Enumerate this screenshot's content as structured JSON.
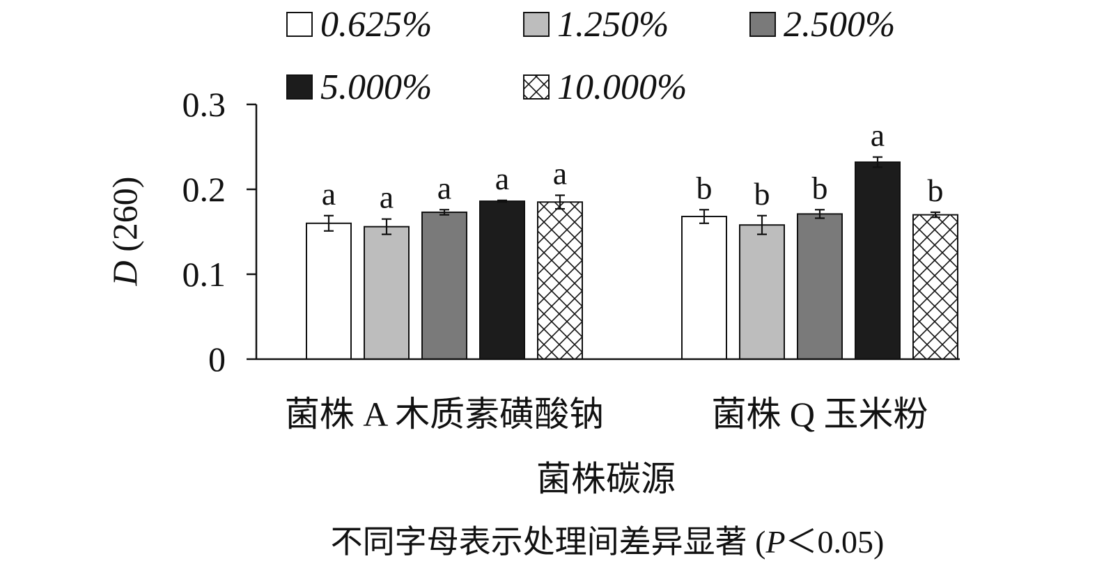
{
  "chart_data": {
    "type": "bar",
    "title": "",
    "xlabel": "菌株碳源",
    "ylabel": "D (260)",
    "ylabel_italic": "D",
    "ylabel_rest": " (260)",
    "ylim": [
      0,
      0.3
    ],
    "yticks": [
      {
        "value": 0,
        "label": "0"
      },
      {
        "value": 0.1,
        "label": "0.1"
      },
      {
        "value": 0.2,
        "label": "0.2"
      },
      {
        "value": 0.3,
        "label": "0.3"
      }
    ],
    "categories": [
      "菌株 A 木质素磺酸钠",
      "菌株 Q 玉米粉"
    ],
    "legend_position": "top",
    "series": [
      {
        "name": "0.625%",
        "fill": "#ffffff",
        "pattern": "none",
        "values": [
          0.16,
          0.168
        ],
        "errors": [
          0.009,
          0.008
        ],
        "sig": [
          "a",
          "b"
        ]
      },
      {
        "name": "1.250%",
        "fill": "#bdbdbd",
        "pattern": "none",
        "values": [
          0.156,
          0.158
        ],
        "errors": [
          0.009,
          0.011
        ],
        "sig": [
          "a",
          "b"
        ]
      },
      {
        "name": "2.500%",
        "fill": "#7a7a7a",
        "pattern": "none",
        "values": [
          0.173,
          0.171
        ],
        "errors": [
          0.003,
          0.005
        ],
        "sig": [
          "a",
          "b"
        ]
      },
      {
        "name": "5.000%",
        "fill": "#1c1c1c",
        "pattern": "none",
        "values": [
          0.186,
          0.232
        ],
        "errors": [
          0.001,
          0.006
        ],
        "sig": [
          "a",
          "a"
        ]
      },
      {
        "name": "10.000%",
        "fill": "#ffffff",
        "pattern": "crosshatch",
        "values": [
          0.185,
          0.17
        ],
        "errors": [
          0.008,
          0.003
        ],
        "sig": [
          "a",
          "b"
        ]
      }
    ],
    "note": "不同字母表示处理间差异显著 (P＜0.05)",
    "note_parts": {
      "before": "不同字母表示处理间差异显著 (",
      "italic": "P",
      "after": "＜0.05)"
    }
  }
}
